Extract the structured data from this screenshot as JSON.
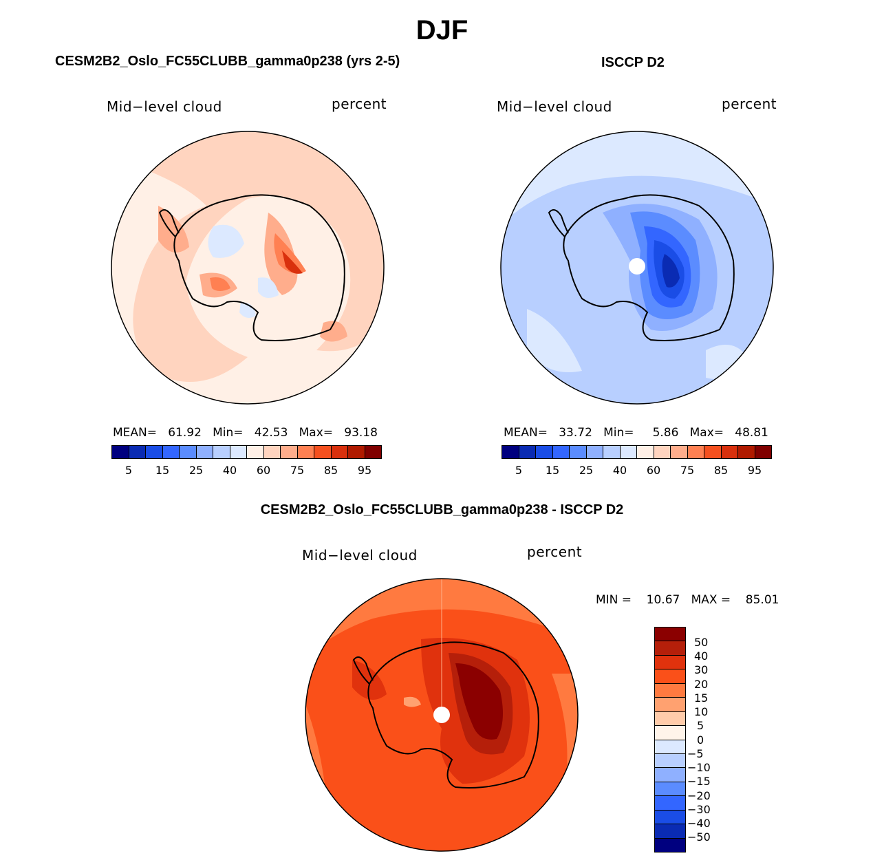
{
  "figure": {
    "title": "DJF",
    "diff_title": "CESM2B2_Oslo_FC55CLUBB_gamma0p238 - ISCCP D2"
  },
  "panels": [
    {
      "title": "CESM2B2_Oslo_FC55CLUBB_gamma0p238 (yrs 2-5)",
      "variable": "Mid−level cloud",
      "units": "percent",
      "stats": {
        "mean_label": "MEAN=",
        "mean": "61.92",
        "min_label": "Min=",
        "min": "42.53",
        "max_label": "Max=",
        "max": "93.18"
      },
      "colorbar_labels": [
        "5",
        "15",
        "25",
        "40",
        "60",
        "75",
        "85",
        "95"
      ]
    },
    {
      "title": "ISCCP D2",
      "variable": "Mid−level cloud",
      "units": "percent",
      "stats": {
        "mean_label": "MEAN=",
        "mean": "33.72",
        "min_label": "Min=",
        "min": "5.86",
        "max_label": "Max=",
        "max": "48.81"
      },
      "colorbar_labels": [
        "5",
        "15",
        "25",
        "40",
        "60",
        "75",
        "85",
        "95"
      ]
    },
    {
      "variable": "Mid−level cloud",
      "units": "percent",
      "stats": {
        "min_label": "MIN =",
        "min": "10.67",
        "max_label": "MAX =",
        "max": "85.01"
      },
      "colorbar_labels": [
        "50",
        "40",
        "30",
        "20",
        "15",
        "10",
        "5",
        "0",
        "−5",
        "−10",
        "−15",
        "−20",
        "−30",
        "−40",
        "−50"
      ]
    }
  ],
  "colors": {
    "abs_scale": [
      "#00007f",
      "#0a2bb3",
      "#1a4de6",
      "#3366ff",
      "#5b8cff",
      "#8fb0ff",
      "#b8cfff",
      "#dce9ff",
      "#fff0e6",
      "#ffd4bf",
      "#ffad8c",
      "#ff8052",
      "#f5501f",
      "#d9300d",
      "#b01a00",
      "#800000"
    ],
    "diff_scale": [
      "#8b0000",
      "#b51f0a",
      "#e0320d",
      "#fa5019",
      "#ff7a40",
      "#ffa170",
      "#ffcbaa",
      "#fff4ea",
      "#dce9ff",
      "#b8cfff",
      "#8fb0ff",
      "#5b8cff",
      "#3366ff",
      "#1a4de6",
      "#0a2bb3",
      "#00007f"
    ]
  }
}
